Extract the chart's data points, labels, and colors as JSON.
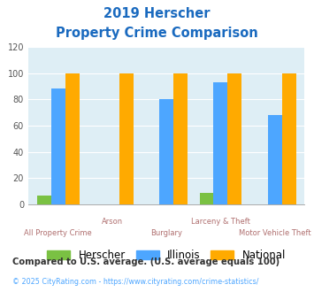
{
  "title_line1": "2019 Herscher",
  "title_line2": "Property Crime Comparison",
  "categories": [
    "All Property Crime",
    "Arson",
    "Burglary",
    "Larceny & Theft",
    "Motor Vehicle Theft"
  ],
  "herscher": [
    7,
    0,
    0,
    9,
    0
  ],
  "illinois": [
    88,
    0,
    80,
    93,
    68
  ],
  "national": [
    100,
    100,
    100,
    100,
    100
  ],
  "herscher_color": "#7ac143",
  "illinois_color": "#4da6ff",
  "national_color": "#ffaa00",
  "bg_color": "#deeef5",
  "ylim": [
    0,
    120
  ],
  "yticks": [
    0,
    20,
    40,
    60,
    80,
    100,
    120
  ],
  "footnote1": "Compared to U.S. average. (U.S. average equals 100)",
  "footnote2": "© 2025 CityRating.com - https://www.cityrating.com/crime-statistics/",
  "title_color": "#1a6abf",
  "footnote1_color": "#333333",
  "footnote2_color": "#4da6ff",
  "xlabel_color": "#b07070"
}
